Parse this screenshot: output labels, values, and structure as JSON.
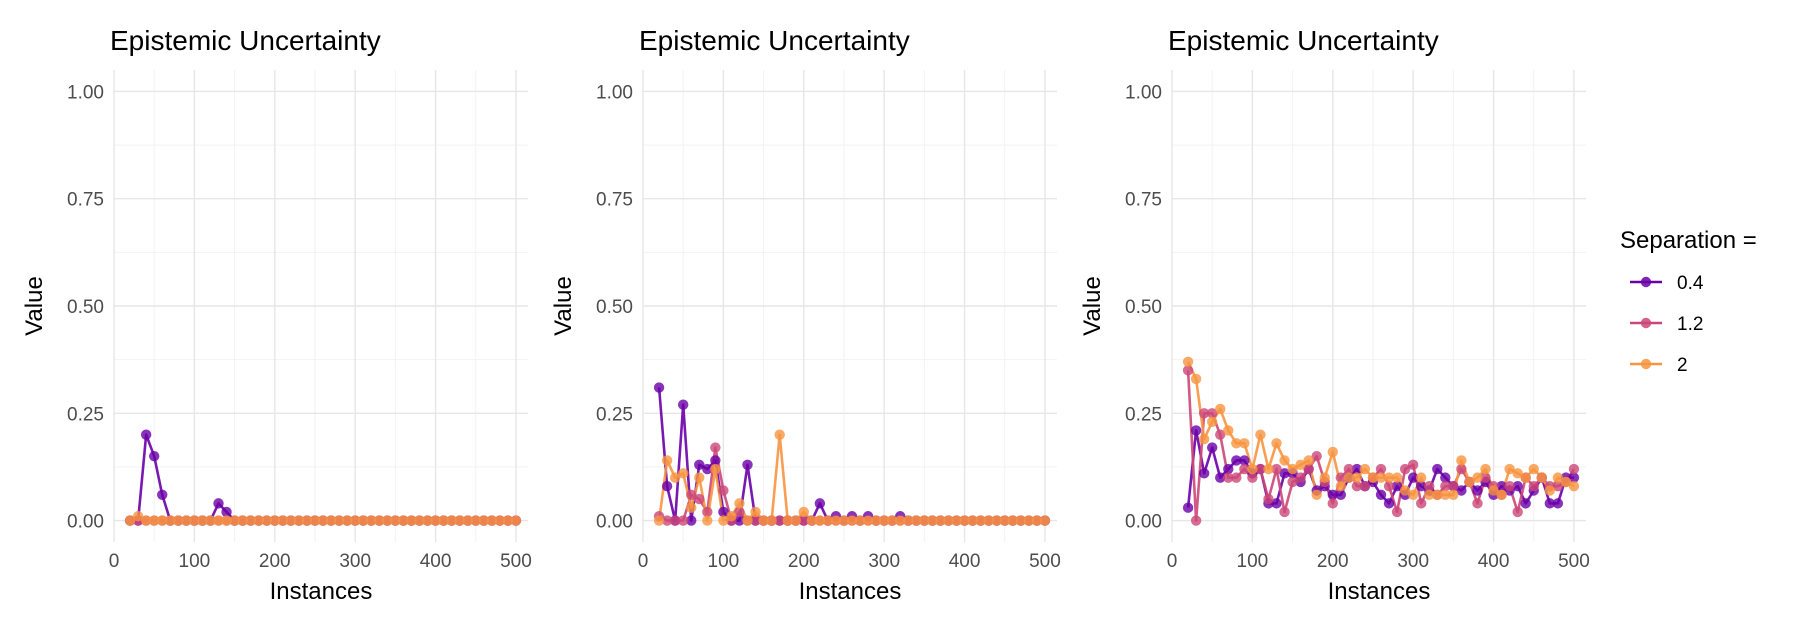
{
  "chart_data": [
    {
      "type": "line",
      "title": "Epistemic Uncertainty",
      "xlabel": "Instances",
      "ylabel": "Value",
      "xlim": [
        0,
        515
      ],
      "ylim": [
        -0.05,
        1.05
      ],
      "x_ticks": [
        0,
        100,
        200,
        300,
        400,
        500
      ],
      "x_tick_labels": [
        "0",
        "100",
        "200",
        "300",
        "400",
        "500"
      ],
      "y_ticks": [
        0,
        0.25,
        0.5,
        0.75,
        1
      ],
      "y_tick_labels": [
        "0.00",
        "0.25",
        "0.50",
        "0.75",
        "1.00"
      ],
      "x": [
        20,
        30,
        40,
        50,
        60,
        70,
        80,
        90,
        100,
        110,
        120,
        130,
        140,
        150,
        160,
        170,
        180,
        190,
        200,
        210,
        220,
        230,
        240,
        250,
        260,
        270,
        280,
        290,
        300,
        310,
        320,
        330,
        340,
        350,
        360,
        370,
        380,
        390,
        400,
        410,
        420,
        430,
        440,
        450,
        460,
        470,
        480,
        490,
        500
      ],
      "series": [
        {
          "name": "0.4",
          "color": "#6a00a8",
          "values": [
            0,
            0,
            0.2,
            0.15,
            0.06,
            0,
            0,
            0,
            0,
            0,
            0,
            0.04,
            0.02,
            0,
            0,
            0,
            0,
            0,
            0,
            0,
            0,
            0,
            0,
            0,
            0,
            0,
            0,
            0,
            0,
            0,
            0,
            0,
            0,
            0,
            0,
            0,
            0,
            0,
            0,
            0,
            0,
            0,
            0,
            0,
            0,
            0,
            0,
            0,
            0
          ]
        },
        {
          "name": "1.2",
          "color": "#cc4778",
          "values": [
            0,
            0,
            0,
            0,
            0,
            0,
            0,
            0,
            0,
            0,
            0,
            0,
            0,
            0,
            0,
            0,
            0,
            0,
            0,
            0,
            0,
            0,
            0,
            0,
            0,
            0,
            0,
            0,
            0,
            0,
            0,
            0,
            0,
            0,
            0,
            0,
            0,
            0,
            0,
            0,
            0,
            0,
            0,
            0,
            0,
            0,
            0,
            0,
            0
          ]
        },
        {
          "name": "2",
          "color": "#f89540",
          "values": [
            0,
            0.01,
            0,
            0,
            0,
            0,
            0,
            0,
            0,
            0,
            0,
            0,
            0,
            0,
            0,
            0,
            0,
            0,
            0,
            0,
            0,
            0,
            0,
            0,
            0,
            0,
            0,
            0,
            0,
            0,
            0,
            0,
            0,
            0,
            0,
            0,
            0,
            0,
            0,
            0,
            0,
            0,
            0,
            0,
            0,
            0,
            0,
            0,
            0
          ]
        }
      ]
    },
    {
      "type": "line",
      "title": "Epistemic Uncertainty",
      "xlabel": "Instances",
      "ylabel": "Value",
      "xlim": [
        0,
        515
      ],
      "ylim": [
        -0.05,
        1.05
      ],
      "x_ticks": [
        0,
        100,
        200,
        300,
        400,
        500
      ],
      "x_tick_labels": [
        "0",
        "100",
        "200",
        "300",
        "400",
        "500"
      ],
      "y_ticks": [
        0,
        0.25,
        0.5,
        0.75,
        1
      ],
      "y_tick_labels": [
        "0.00",
        "0.25",
        "0.50",
        "0.75",
        "1.00"
      ],
      "x": [
        20,
        30,
        40,
        50,
        60,
        70,
        80,
        90,
        100,
        110,
        120,
        130,
        140,
        150,
        160,
        170,
        180,
        190,
        200,
        210,
        220,
        230,
        240,
        250,
        260,
        270,
        280,
        290,
        300,
        310,
        320,
        330,
        340,
        350,
        360,
        370,
        380,
        390,
        400,
        410,
        420,
        430,
        440,
        450,
        460,
        470,
        480,
        490,
        500
      ],
      "series": [
        {
          "name": "0.4",
          "color": "#6a00a8",
          "values": [
            0.31,
            0.08,
            0,
            0.27,
            0,
            0.13,
            0.12,
            0.14,
            0.02,
            0,
            0,
            0.13,
            0,
            0,
            0,
            0,
            0,
            0,
            0,
            0,
            0.04,
            0,
            0.01,
            0,
            0.01,
            0,
            0.01,
            0,
            0,
            0,
            0.01,
            0,
            0,
            0,
            0,
            0,
            0,
            0,
            0,
            0,
            0,
            0,
            0,
            0,
            0,
            0,
            0,
            0,
            0
          ]
        },
        {
          "name": "1.2",
          "color": "#cc4778",
          "values": [
            0.01,
            0,
            0,
            0,
            0.06,
            0.05,
            0.02,
            0.17,
            0.07,
            0,
            0.02,
            0,
            0,
            0,
            0,
            0,
            0,
            0,
            0,
            0,
            0,
            0,
            0,
            0,
            0,
            0,
            0,
            0,
            0,
            0,
            0,
            0,
            0,
            0,
            0,
            0,
            0,
            0,
            0,
            0,
            0,
            0,
            0,
            0,
            0,
            0,
            0,
            0,
            0
          ]
        },
        {
          "name": "2",
          "color": "#f89540",
          "values": [
            0,
            0.14,
            0.1,
            0.11,
            0.03,
            0.1,
            0,
            0.12,
            0,
            0.01,
            0.04,
            0,
            0.02,
            0,
            0,
            0.2,
            0,
            0,
            0.02,
            0,
            0,
            0,
            0,
            0,
            0,
            0,
            0,
            0,
            0,
            0,
            0,
            0,
            0,
            0,
            0,
            0,
            0,
            0,
            0,
            0,
            0,
            0,
            0,
            0,
            0,
            0,
            0,
            0,
            0
          ]
        }
      ]
    },
    {
      "type": "line",
      "title": "Epistemic Uncertainty",
      "xlabel": "Instances",
      "ylabel": "Value",
      "xlim": [
        0,
        515
      ],
      "ylim": [
        -0.05,
        1.05
      ],
      "x_ticks": [
        0,
        100,
        200,
        300,
        400,
        500
      ],
      "x_tick_labels": [
        "0",
        "100",
        "200",
        "300",
        "400",
        "500"
      ],
      "y_ticks": [
        0,
        0.25,
        0.5,
        0.75,
        1
      ],
      "y_tick_labels": [
        "0.00",
        "0.25",
        "0.50",
        "0.75",
        "1.00"
      ],
      "x": [
        20,
        30,
        40,
        50,
        60,
        70,
        80,
        90,
        100,
        110,
        120,
        130,
        140,
        150,
        160,
        170,
        180,
        190,
        200,
        210,
        220,
        230,
        240,
        250,
        260,
        270,
        280,
        290,
        300,
        310,
        320,
        330,
        340,
        350,
        360,
        370,
        380,
        390,
        400,
        410,
        420,
        430,
        440,
        450,
        460,
        470,
        480,
        490,
        500
      ],
      "series": [
        {
          "name": "0.4",
          "color": "#6a00a8",
          "values": [
            0.03,
            0.21,
            0.11,
            0.17,
            0.1,
            0.12,
            0.14,
            0.14,
            0.11,
            0.12,
            0.04,
            0.04,
            0.11,
            0.11,
            0.09,
            0.12,
            0.07,
            0.08,
            0.06,
            0.06,
            0.1,
            0.12,
            0.08,
            0.09,
            0.06,
            0.04,
            0.08,
            0.06,
            0.1,
            0.08,
            0.07,
            0.12,
            0.1,
            0.08,
            0.07,
            0.09,
            0.07,
            0.09,
            0.06,
            0.08,
            0.07,
            0.08,
            0.04,
            0.07,
            0.1,
            0.04,
            0.04,
            0.1,
            0.1
          ]
        },
        {
          "name": "1.2",
          "color": "#cc4778",
          "values": [
            0.35,
            0,
            0.25,
            0.25,
            0.2,
            0.1,
            0.1,
            0.12,
            0.1,
            0.12,
            0.05,
            0.12,
            0.02,
            0.09,
            0.1,
            0.12,
            0.15,
            0.09,
            0.04,
            0.1,
            0.12,
            0.08,
            0.08,
            0.1,
            0.12,
            0.08,
            0.02,
            0.12,
            0.13,
            0.04,
            0.08,
            0.06,
            0.08,
            0.08,
            0.12,
            0.09,
            0.04,
            0.1,
            0.08,
            0.06,
            0.08,
            0.02,
            0.1,
            0.08,
            0.1,
            0.08,
            0.08,
            0.09,
            0.12
          ]
        },
        {
          "name": "2",
          "color": "#f89540",
          "values": [
            0.37,
            0.33,
            0.19,
            0.23,
            0.26,
            0.21,
            0.18,
            0.18,
            0.12,
            0.2,
            0.12,
            0.18,
            0.14,
            0.12,
            0.13,
            0.14,
            0.06,
            0.1,
            0.16,
            0.08,
            0.1,
            0.1,
            0.12,
            0.1,
            0.1,
            0.1,
            0.1,
            0.07,
            0.06,
            0.1,
            0.06,
            0.06,
            0.06,
            0.06,
            0.14,
            0.09,
            0.1,
            0.12,
            0.07,
            0.06,
            0.12,
            0.11,
            0.1,
            0.12,
            0.1,
            0.07,
            0.1,
            0.09,
            0.08
          ]
        }
      ]
    }
  ],
  "legend": {
    "title": "Separation =",
    "items": [
      {
        "label": "0.4",
        "color": "#6a00a8"
      },
      {
        "label": "1.2",
        "color": "#cc4778"
      },
      {
        "label": "2",
        "color": "#f89540"
      }
    ]
  }
}
